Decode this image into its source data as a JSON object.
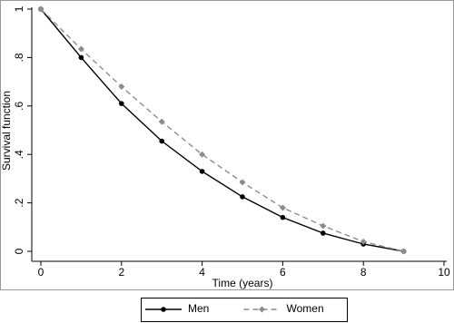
{
  "chart_data": {
    "type": "line",
    "x_label": "Time (years)",
    "y_label": "Survival function",
    "x": [
      0,
      1,
      2,
      3,
      4,
      5,
      6,
      7,
      8,
      9
    ],
    "series": [
      {
        "name": "Men",
        "color": "#000000",
        "line_style": "solid",
        "marker": "circle",
        "values": [
          1,
          0.8,
          0.61,
          0.455,
          0.33,
          0.225,
          0.14,
          0.075,
          0.03,
          0
        ]
      },
      {
        "name": "Women",
        "color": "#8c8c8c",
        "line_style": "dashed",
        "marker": "diamond",
        "values": [
          1,
          0.835,
          0.68,
          0.535,
          0.4,
          0.285,
          0.18,
          0.105,
          0.04,
          0
        ]
      }
    ],
    "xlim": [
      0,
      10
    ],
    "xticks": [
      0,
      2,
      4,
      6,
      8,
      10
    ],
    "ylim": [
      0,
      1
    ],
    "yticks": [
      0,
      {
        "value": 0.2,
        "label": ".2"
      },
      {
        "value": 0.4,
        "label": ".4"
      },
      {
        "value": 0.6,
        "label": ".6"
      },
      {
        "value": 0.8,
        "label": ".8"
      },
      1
    ],
    "grid": false,
    "legend": "bottom"
  }
}
